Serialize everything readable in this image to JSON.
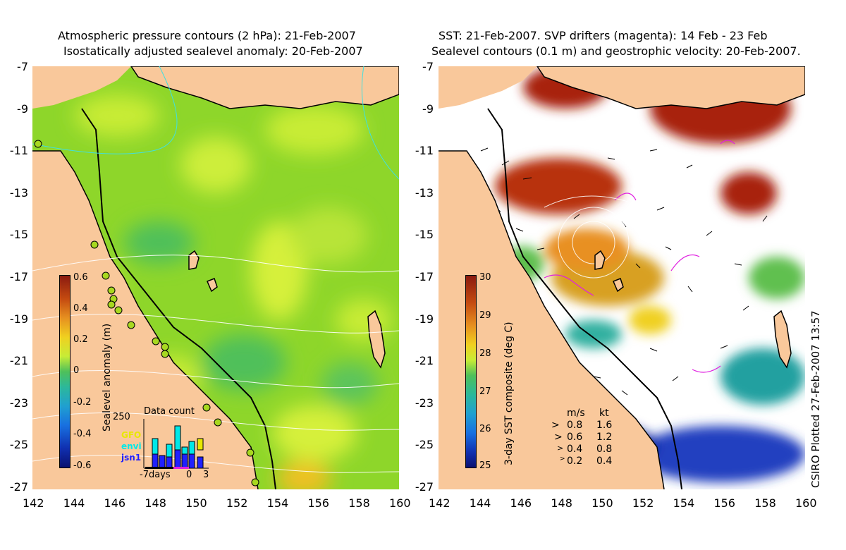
{
  "left_panel": {
    "title_line1": "Atmospheric pressure contours (2 hPa): 21-Feb-2007",
    "title_line2": "Isostatically adjusted sealevel anomaly: 20-Feb-2007",
    "colorbar": {
      "label": "Sealevel anomaly (m)",
      "ticks": [
        "0.6",
        "0.4",
        "0.2",
        "0",
        "-0.2",
        "-0.4",
        "-0.6"
      ],
      "range": [
        -0.6,
        0.6
      ]
    },
    "data_count": {
      "title": "Data count",
      "max_label": "250",
      "satellites": [
        {
          "name": "GFO",
          "color": "#e8e800"
        },
        {
          "name": "envi",
          "color": "#00e8e8"
        },
        {
          "name": "jsn1",
          "color": "#2020ff"
        }
      ],
      "x_labels": [
        "-7days",
        "0",
        "3"
      ]
    }
  },
  "right_panel": {
    "title_line1": "SST: 21-Feb-2007. SVP drifters (magenta): 14 Feb - 23 Feb",
    "title_line2": "Sealevel contours (0.1 m) and geostrophic velocity: 20-Feb-2007.",
    "colorbar": {
      "label": "3-day SST composite (deg C)",
      "ticks": [
        "30",
        "29",
        "28",
        "27",
        "26",
        "25"
      ],
      "range": [
        25,
        30
      ]
    },
    "velocity_legend": {
      "header_ms": "m/s",
      "header_kt": "kt",
      "rows": [
        {
          "ms": "0.8",
          "kt": "1.6"
        },
        {
          "ms": "0.6",
          "kt": "1.2"
        },
        {
          "ms": "0.4",
          "kt": "0.8"
        },
        {
          "ms": "0.2",
          "kt": "0.4"
        }
      ]
    }
  },
  "axes": {
    "lat_ticks": [
      "-7",
      "-9",
      "-11",
      "-13",
      "-15",
      "-17",
      "-19",
      "-21",
      "-23",
      "-25",
      "-27"
    ],
    "lon_ticks": [
      "142",
      "144",
      "146",
      "148",
      "150",
      "152",
      "154",
      "156",
      "158",
      "160"
    ],
    "lat_range": [
      -27,
      -7
    ],
    "lon_range": [
      142,
      160
    ]
  },
  "stamp": "CSIRO Plotted 27-Feb-2007 13:57",
  "colors": {
    "land": "#f9c89b",
    "sea_base": "#8ed62a",
    "coast": "#000000"
  }
}
